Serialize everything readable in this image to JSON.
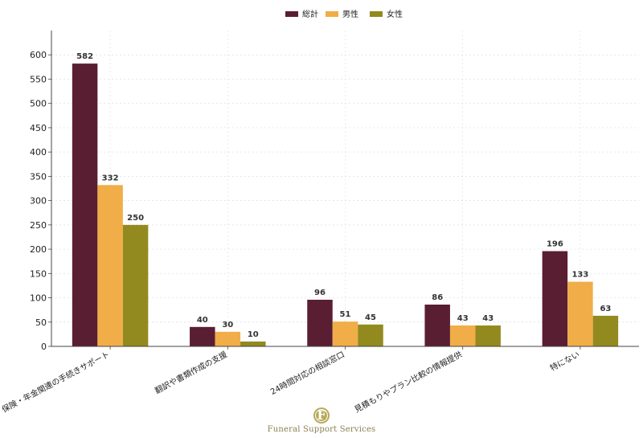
{
  "brand": {
    "name": "Funeral Support Services",
    "initial": "F"
  },
  "chart_data": {
    "type": "bar",
    "categories": [
      "役所・保険・年金関連の手続きサポート",
      "翻訳や書類作成の支援",
      "24時間対応の相談窓口",
      "見積もりやプラン比較の情報提供",
      "特にない"
    ],
    "series": [
      {
        "name": "総計",
        "color": "#5a1e33",
        "values": [
          582,
          40,
          96,
          86,
          196
        ]
      },
      {
        "name": "男性",
        "color": "#f0ad48",
        "values": [
          332,
          30,
          51,
          43,
          133
        ]
      },
      {
        "name": "女性",
        "color": "#938a1f",
        "values": [
          250,
          10,
          45,
          43,
          63
        ]
      }
    ],
    "ylim": [
      0,
      650
    ],
    "yticks": [
      0,
      50,
      100,
      150,
      200,
      250,
      300,
      350,
      400,
      450,
      500,
      550,
      600
    ],
    "grid": true,
    "legend": "top-center",
    "title": "",
    "xlabel": "",
    "ylabel": ""
  }
}
